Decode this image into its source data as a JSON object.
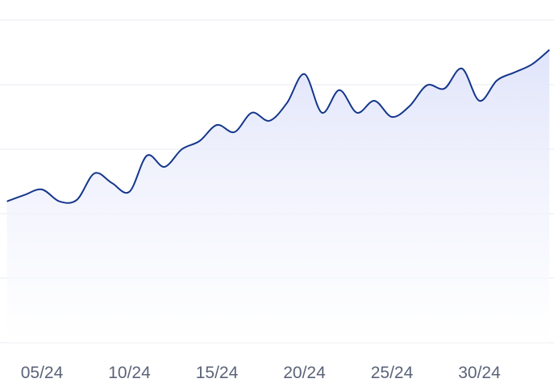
{
  "chart_data": {
    "type": "area",
    "categories": [
      null,
      null,
      "05/24",
      null,
      null,
      null,
      null,
      "10/24",
      null,
      null,
      null,
      null,
      "15/24",
      null,
      null,
      null,
      null,
      "20/24",
      null,
      null,
      null,
      null,
      "25/24",
      null,
      null,
      null,
      null,
      "30/24",
      null,
      null,
      null,
      null
    ],
    "series": [
      {
        "color": "#14368c",
        "values": [
          43.8,
          45.8,
          47.5,
          43.8,
          44.3,
          52.5,
          49.5,
          46.8,
          58,
          54.5,
          60,
          62.5,
          67.5,
          65.3,
          71.3,
          68.8,
          74.3,
          83.3,
          71.3,
          78.3,
          71.3,
          75,
          70,
          73.3,
          79.8,
          78.8,
          85,
          75,
          81.3,
          83.8,
          86.3,
          90.8
        ]
      }
    ],
    "ylim": [
      0,
      100
    ],
    "yticks": [
      0,
      20,
      40,
      60,
      80,
      100
    ],
    "grid": true
  }
}
